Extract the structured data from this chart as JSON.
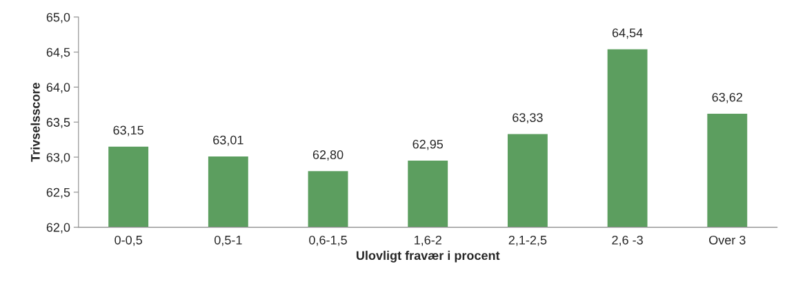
{
  "chart_data": {
    "type": "bar",
    "xlabel": "Ulovligt fravær i procent",
    "ylabel": "Trivselsscore",
    "categories": [
      "0-0,5",
      "0,5-1",
      "0,6-1,5",
      "1,6-2",
      "2,1-2,5",
      "2,6 -3",
      "Over 3"
    ],
    "values": [
      63.15,
      63.01,
      62.8,
      62.95,
      63.33,
      64.54,
      63.62
    ],
    "value_labels": [
      "63,15",
      "63,01",
      "62,80",
      "62,95",
      "63,33",
      "64,54",
      "63,62"
    ],
    "color": "#5c9e5f",
    "ylim": [
      62.0,
      65.0
    ],
    "yticks": [
      {
        "value": 62.0,
        "label": "62,0"
      },
      {
        "value": 62.5,
        "label": "62,5"
      },
      {
        "value": 63.0,
        "label": "63,0"
      },
      {
        "value": 63.5,
        "label": "63,5"
      },
      {
        "value": 64.0,
        "label": "64,0"
      },
      {
        "value": 64.5,
        "label": "64,5"
      },
      {
        "value": 65.0,
        "label": "65,0"
      }
    ],
    "grid": false
  }
}
